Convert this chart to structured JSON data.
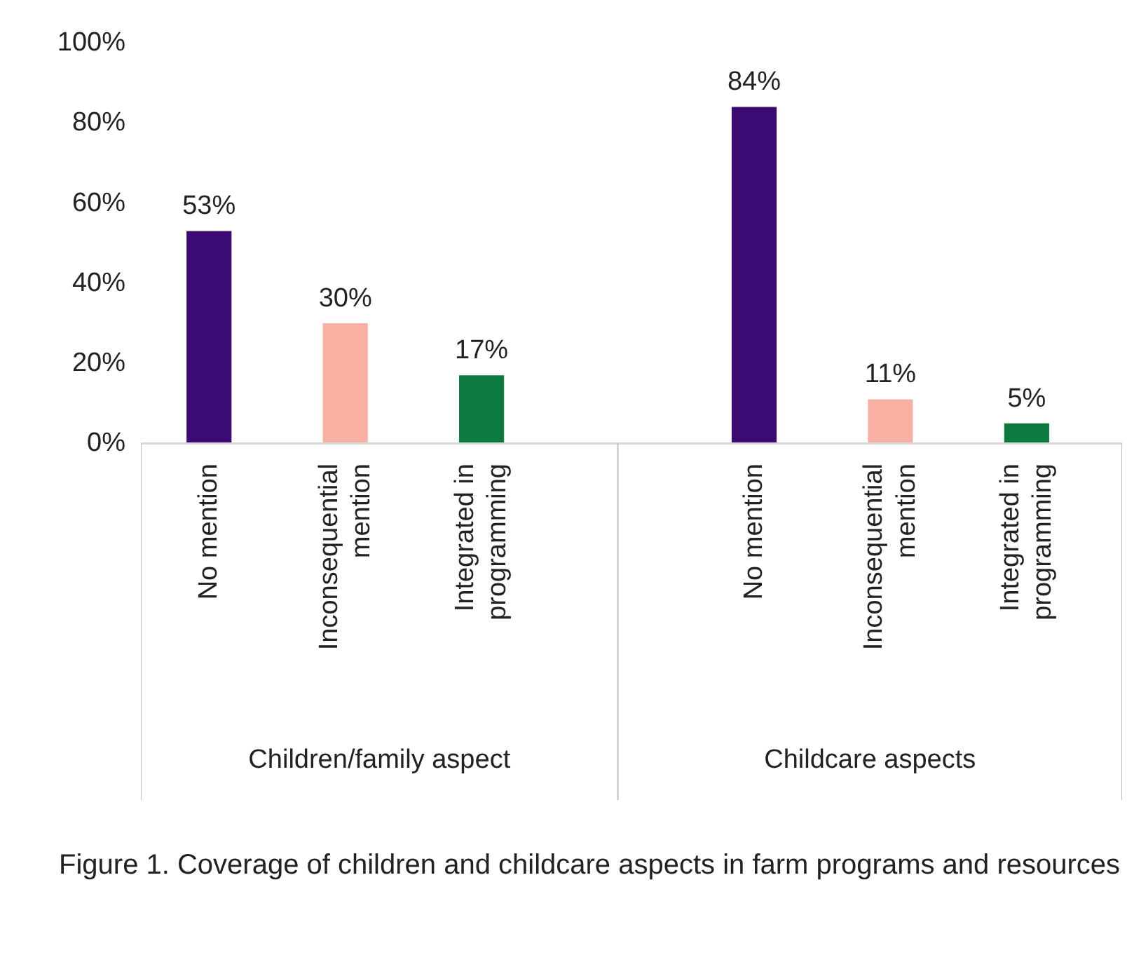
{
  "chart_data": {
    "type": "bar",
    "categories": [
      "No mention",
      "Inconsequential mention",
      "Integrated in programming",
      "No mention",
      "Inconsequential mention",
      "Integrated in programming"
    ],
    "values": [
      53,
      30,
      17,
      84,
      11,
      5
    ],
    "colors": [
      "#3b0a73",
      "#f8b0a2",
      "#0a7a3e",
      "#3b0a73",
      "#f8b0a2",
      "#0a7a3e"
    ],
    "value_labels": [
      "53%",
      "30%",
      "17%",
      "84%",
      "11%",
      "5%"
    ],
    "ylim": [
      0,
      100
    ],
    "yticks": [
      {
        "value": 0,
        "label": "0%"
      },
      {
        "value": 20,
        "label": "20%"
      },
      {
        "value": 40,
        "label": "40%"
      },
      {
        "value": 60,
        "label": "60%"
      },
      {
        "value": 80,
        "label": "80%"
      },
      {
        "value": 100,
        "label": "100%"
      }
    ],
    "grid": false,
    "annotations": [
      "Children/family aspect",
      "Childcare aspects",
      "Figure 1. Coverage of children and childcare aspects in farm programs and resources"
    ]
  }
}
